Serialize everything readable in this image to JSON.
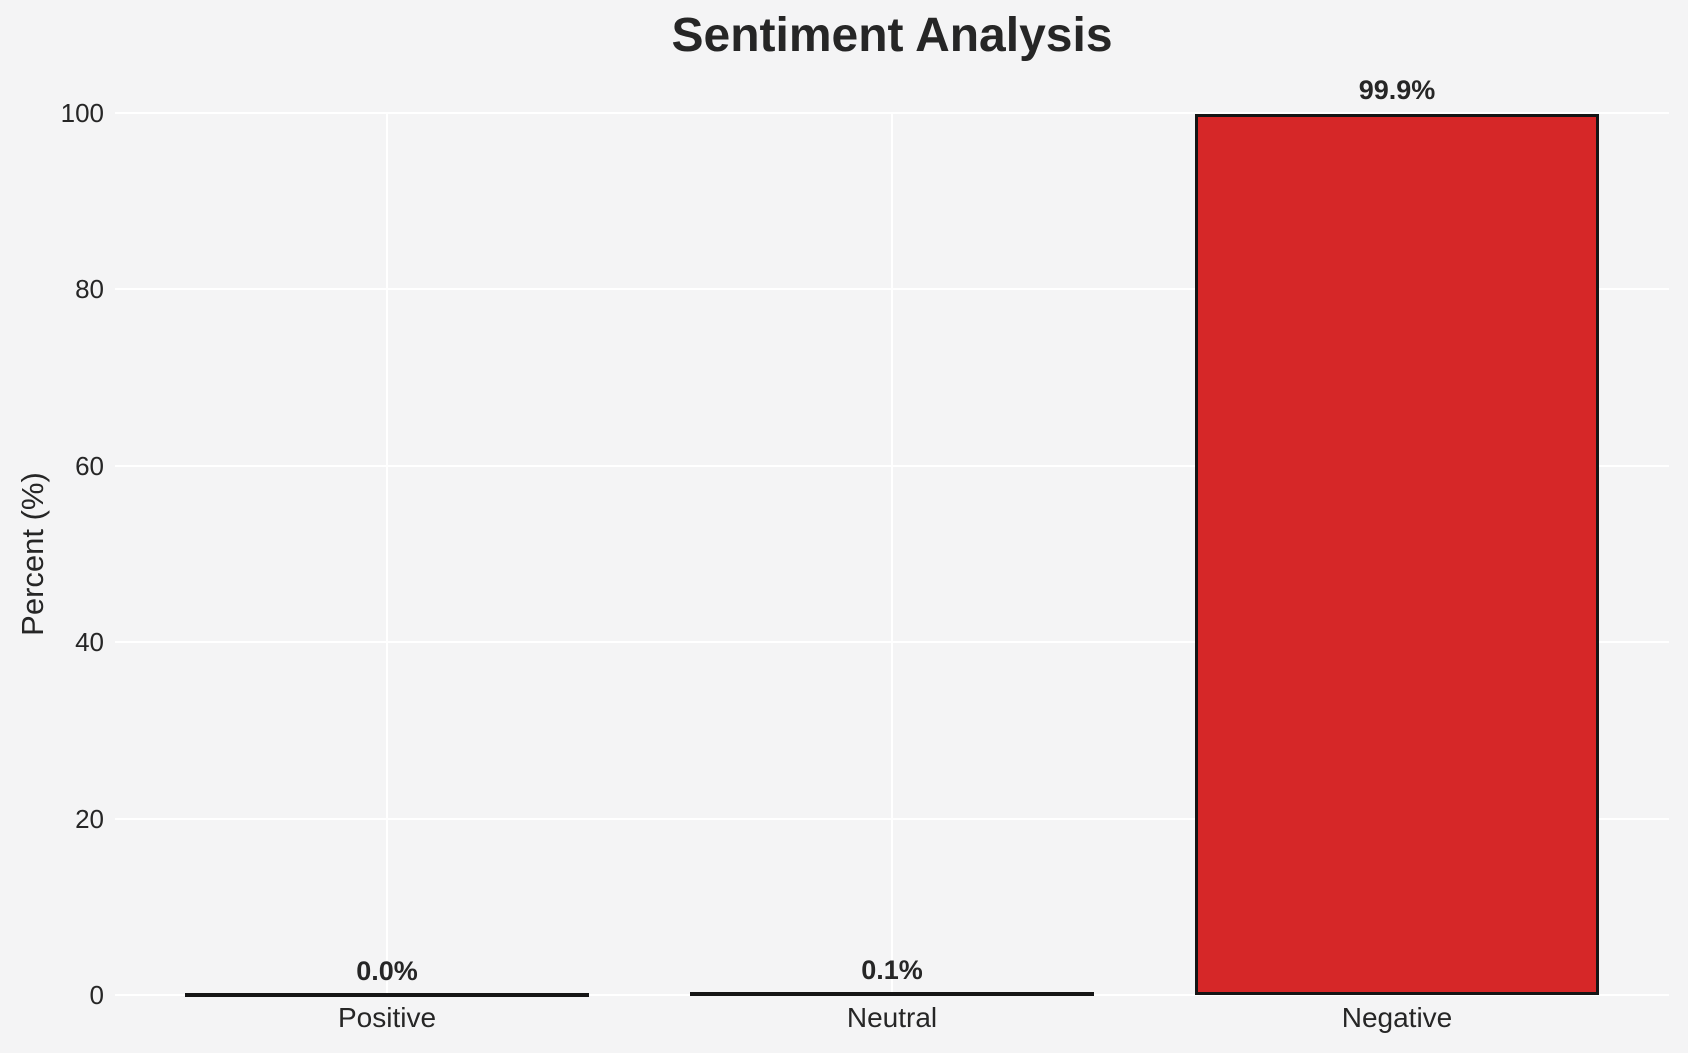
{
  "chart_data": {
    "type": "bar",
    "title": "Sentiment Analysis",
    "xlabel": "",
    "ylabel": "Percent (%)",
    "categories": [
      "Positive",
      "Neutral",
      "Negative"
    ],
    "values": [
      0.0,
      0.1,
      99.9
    ],
    "value_labels": [
      "0.0%",
      "0.1%",
      "99.9%"
    ],
    "ylim": [
      0,
      100
    ],
    "yticks": [
      0,
      20,
      40,
      60,
      80,
      100
    ],
    "ytick_labels": [
      "0",
      "20",
      "40",
      "60",
      "80",
      "100"
    ],
    "grid": true,
    "legend": false,
    "colors": {
      "bar_fill": "#d62728",
      "bar_edge": "#151515",
      "background": "#f4f4f5",
      "gridline": "#ffffff",
      "text": "#262626"
    }
  }
}
